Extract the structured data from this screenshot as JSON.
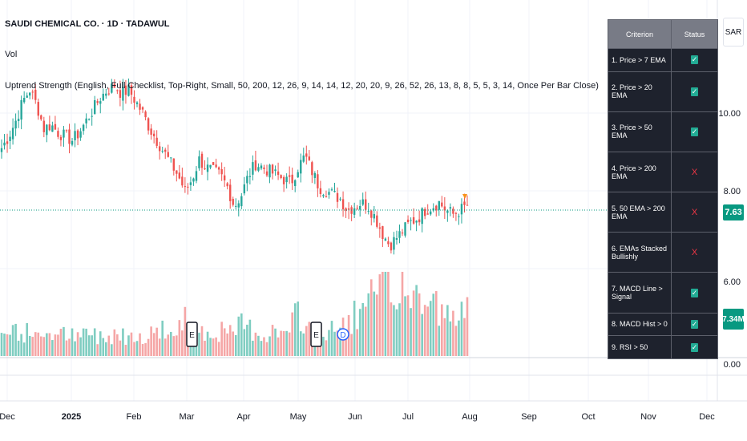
{
  "header": {
    "symbol_title": "SAUDI CHEMICAL CO. · 1D · TADAWUL",
    "volume_label": "Vol",
    "indicator_legend": "Uptrend Strength (English, Full Checklist, Top-Right, Small, 50, 200, 12, 26, 9, 14, 14, 12, 20, 20, 9, 26, 52, 26, 13, 8, 8, 5, 5, 3, 14, Once Per Bar Close)"
  },
  "price_axis": {
    "currency": "SAR",
    "ticks": [
      "10.00",
      "8.00",
      "6.00",
      "0.00"
    ],
    "last_price_label": "7.63",
    "last_volume_label": "7.34M",
    "badge_color": "#089981"
  },
  "time_axis": {
    "labels": [
      {
        "text": "Dec",
        "year": false
      },
      {
        "text": "2025",
        "year": true
      },
      {
        "text": "Feb",
        "year": false
      },
      {
        "text": "Mar",
        "year": false
      },
      {
        "text": "Apr",
        "year": false
      },
      {
        "text": "May",
        "year": false
      },
      {
        "text": "Jun",
        "year": false
      },
      {
        "text": "Jul",
        "year": false
      },
      {
        "text": "Aug",
        "year": false
      },
      {
        "text": "Sep",
        "year": false
      },
      {
        "text": "Oct",
        "year": false
      },
      {
        "text": "Nov",
        "year": false
      },
      {
        "text": "Dec",
        "year": false
      }
    ]
  },
  "events": [
    {
      "type": "earnings",
      "text": "E"
    },
    {
      "type": "earnings",
      "text": "E"
    },
    {
      "type": "dividend",
      "text": "D"
    }
  ],
  "checklist": {
    "headers": [
      "Criterion",
      "Status"
    ],
    "rows": [
      {
        "criterion": "1. Price > 7 EMA",
        "status": "check",
        "glyph": "✓"
      },
      {
        "criterion": "2. Price > 20 EMA",
        "status": "check",
        "glyph": "✓"
      },
      {
        "criterion": "3. Price > 50 EMA",
        "status": "check",
        "glyph": "✓"
      },
      {
        "criterion": "4. Price > 200 EMA",
        "status": "cross",
        "glyph": "X"
      },
      {
        "criterion": "5. 50 EMA > 200 EMA",
        "status": "cross",
        "glyph": "X"
      },
      {
        "criterion": "6. EMAs Stacked Bullishly",
        "status": "cross",
        "glyph": "X"
      },
      {
        "criterion": "7. MACD Line > Signal",
        "status": "check",
        "glyph": "✓"
      },
      {
        "criterion": "8. MACD Hist > 0",
        "status": "check",
        "glyph": "✓"
      },
      {
        "criterion": "9. RSI > 50",
        "status": "check",
        "glyph": "✓"
      }
    ]
  },
  "colors": {
    "up": "#26a69a",
    "down": "#ef5350",
    "volume_up": "#7fcdc1",
    "volume_down": "#f5a6a6",
    "grid": "#f0f3fa",
    "price_line": "#089981",
    "signal_marker": "#f7931a",
    "table_bg": "#1e222d",
    "table_header": "#787b86"
  },
  "chart_data": {
    "type": "candlestick",
    "price_axis_ticks": [
      10,
      8,
      6,
      0
    ],
    "last_price": 7.63,
    "last_volume_millions": 7.34,
    "close_path": [
      9.1,
      9.4,
      9.8,
      10.3,
      10.6,
      10.2,
      9.6,
      9.7,
      9.5,
      9.4,
      9.3,
      9.5,
      9.8,
      10.1,
      10.4,
      10.6,
      10.7,
      10.5,
      10.6,
      10.3,
      10.0,
      9.6,
      9.3,
      9.0,
      8.7,
      8.4,
      8.0,
      8.3,
      8.8,
      8.6,
      8.5,
      8.4,
      8.1,
      7.6,
      7.9,
      8.4,
      8.7,
      8.6,
      8.5,
      8.4,
      8.3,
      8.2,
      8.6,
      8.9,
      8.5,
      8.1,
      8.0,
      7.9,
      7.8,
      7.5,
      7.6,
      7.7,
      7.6,
      7.3,
      6.9,
      6.6,
      6.8,
      7.0,
      7.2,
      7.3,
      7.5,
      7.6,
      7.7,
      7.5,
      7.4,
      7.5,
      7.63
    ],
    "volume_path_millions": [
      3,
      2.5,
      4,
      2,
      3.5,
      2,
      2.8,
      3.2,
      2.2,
      3,
      2.5,
      2,
      3.1,
      2.6,
      2.4,
      2.2,
      3,
      2.7,
      2.3,
      3.3,
      2.4,
      2.6,
      3.2,
      3.6,
      2.5,
      2.8,
      4.6,
      3.5,
      3.8,
      2.6,
      2.9,
      3.1,
      2.8,
      2.6,
      4.1,
      3.6,
      3,
      2.7,
      2.9,
      3.1,
      2.6,
      3.4,
      5.4,
      4,
      3.2,
      2.7,
      2.6,
      3.2,
      3.5,
      4.2,
      5.2,
      4.6,
      6.6,
      7.4,
      9.1,
      8.4,
      7.6,
      10.2,
      6.1,
      8,
      6.3,
      7.2,
      5.6,
      4.9,
      4.2,
      4.6,
      7.34
    ],
    "events": [
      "E",
      "E",
      "D"
    ]
  }
}
